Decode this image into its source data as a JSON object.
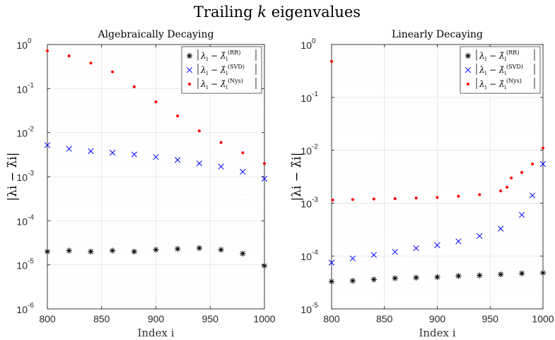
{
  "figure": {
    "title": "Trailing k eigenvalues",
    "title_plain": "Trailing ",
    "title_var": "k",
    "title_rest": " eigenvalues"
  },
  "colors": {
    "rr": "#000000",
    "svd": "#0000ff",
    "nys": "#ff0000",
    "grid": "#dcdcdc",
    "axis": "#262626"
  },
  "chart_data": [
    {
      "type": "scatter",
      "title": "Algebraically Decaying",
      "xlabel": "Index i",
      "ylabel": "|λi − λ̂i|",
      "yscale": "log",
      "xlim": [
        800,
        1000
      ],
      "ylim": [
        1e-06,
        1
      ],
      "xticks": [
        "800",
        "850",
        "900",
        "950",
        "1000"
      ],
      "yticks": [
        {
          "base": "10",
          "exp": "-6"
        },
        {
          "base": "10",
          "exp": "-5"
        },
        {
          "base": "10",
          "exp": "-4"
        },
        {
          "base": "10",
          "exp": "-3"
        },
        {
          "base": "10",
          "exp": "-2"
        },
        {
          "base": "10",
          "exp": "-1"
        },
        {
          "base": "10",
          "exp": "0"
        }
      ],
      "grid": true,
      "legend_position": "top-right",
      "series": [
        {
          "key": "rr",
          "marker": "asterisk",
          "label_sup": "(RR)",
          "x": [
            800,
            820,
            840,
            860,
            880,
            900,
            920,
            940,
            960,
            980,
            1000
          ],
          "y": [
            2e-05,
            2.1e-05,
            2e-05,
            2.1e-05,
            2e-05,
            2.2e-05,
            2.3e-05,
            2.4e-05,
            2.2e-05,
            1.8e-05,
            9.5e-06
          ]
        },
        {
          "key": "svd",
          "marker": "cross",
          "label_sup": "(SVD)",
          "x": [
            800,
            820,
            840,
            860,
            880,
            900,
            920,
            940,
            960,
            980,
            1000
          ],
          "y": [
            0.0052,
            0.0043,
            0.0038,
            0.0035,
            0.0032,
            0.0028,
            0.0024,
            0.002,
            0.0017,
            0.0013,
            0.0009
          ]
        },
        {
          "key": "nys",
          "marker": "dot",
          "label_sup": "(Nys)",
          "x": [
            800,
            820,
            840,
            860,
            880,
            900,
            920,
            940,
            960,
            980,
            1000
          ],
          "y": [
            0.72,
            0.55,
            0.38,
            0.24,
            0.11,
            0.05,
            0.024,
            0.011,
            0.006,
            0.0035,
            0.002
          ]
        }
      ]
    },
    {
      "type": "scatter",
      "title": "Linearly Decaying",
      "xlabel": "Index i",
      "ylabel": "|λi − λ̂i|",
      "yscale": "log",
      "xlim": [
        800,
        1000
      ],
      "ylim": [
        1e-05,
        1
      ],
      "xticks": [
        "800",
        "850",
        "900",
        "950",
        "1000"
      ],
      "yticks": [
        {
          "base": "10",
          "exp": "-5"
        },
        {
          "base": "10",
          "exp": "-4"
        },
        {
          "base": "10",
          "exp": "-3"
        },
        {
          "base": "10",
          "exp": "-2"
        },
        {
          "base": "10",
          "exp": "-1"
        },
        {
          "base": "10",
          "exp": "0"
        }
      ],
      "grid": true,
      "legend_position": "top-right",
      "series": [
        {
          "key": "rr",
          "marker": "asterisk",
          "label_sup": "(RR)",
          "x": [
            800,
            820,
            840,
            860,
            880,
            900,
            920,
            940,
            960,
            980,
            1000
          ],
          "y": [
            3.3e-05,
            3.4e-05,
            3.6e-05,
            3.8e-05,
            3.9e-05,
            4e-05,
            4.2e-05,
            4.3e-05,
            4.5e-05,
            4.7e-05,
            4.8e-05
          ]
        },
        {
          "key": "svd",
          "marker": "cross",
          "label_sup": "(SVD)",
          "x": [
            800,
            820,
            840,
            860,
            880,
            900,
            920,
            940,
            960,
            980,
            990,
            1000
          ],
          "y": [
            7.5e-05,
            9e-05,
            0.000105,
            0.00012,
            0.00014,
            0.00016,
            0.00019,
            0.00024,
            0.00033,
            0.0006,
            0.0014,
            0.0055
          ]
        },
        {
          "key": "nys",
          "marker": "dot",
          "label_sup": "(Nys)",
          "x": [
            800,
            801,
            820,
            840,
            860,
            880,
            900,
            920,
            940,
            960,
            966,
            970,
            980,
            990,
            1000
          ],
          "y": [
            0.48,
            0.00115,
            0.00117,
            0.0012,
            0.00122,
            0.00125,
            0.00128,
            0.00135,
            0.00145,
            0.0017,
            0.002,
            0.003,
            0.0038,
            0.0055,
            0.011
          ]
        }
      ]
    }
  ]
}
